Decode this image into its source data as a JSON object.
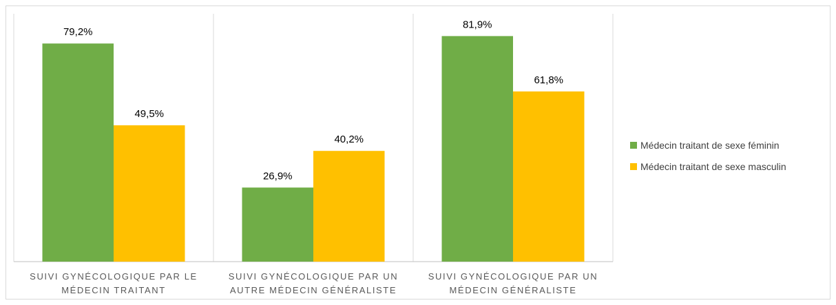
{
  "chart_data": {
    "type": "bar",
    "categories": [
      "SUIVI GYNÉCOLOGIQUE PAR LE MÉDECIN TRAITANT",
      "SUIVI GYNÉCOLOGIQUE PAR UN AUTRE MÉDECIN GÉNÉRALISTE",
      "SUIVI GYNÉCOLOGIQUE PAR UN MÉDECIN GÉNÉRALISTE"
    ],
    "series": [
      {
        "name": "Médecin traitant de sexe féminin",
        "color": "#70ad47",
        "values": [
          79.2,
          26.9,
          81.9
        ],
        "value_labels": [
          "79,2%",
          "26,9%",
          "81,9%"
        ]
      },
      {
        "name": "Médecin traitant de sexe masculin",
        "color": "#ffc000",
        "values": [
          49.5,
          40.2,
          61.8
        ],
        "value_labels": [
          "49,5%",
          "40,2%",
          "61,8%"
        ]
      }
    ],
    "ylim": [
      0,
      90
    ],
    "legend": "right"
  }
}
